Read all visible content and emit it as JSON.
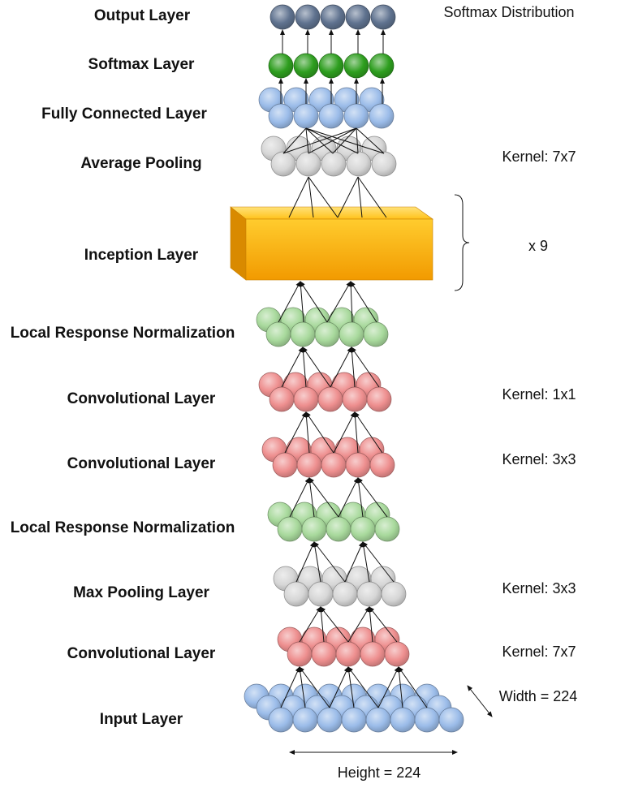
{
  "layers": [
    {
      "key": "output",
      "label": "Output Layer",
      "note": "Softmax Distribution",
      "color": "#5f728f"
    },
    {
      "key": "softmax",
      "label": "Softmax Layer",
      "note": "",
      "color": "#2e9e1f"
    },
    {
      "key": "fc",
      "label": "Fully Connected Layer",
      "note": "",
      "color": "#9bbce9"
    },
    {
      "key": "avgpool",
      "label": "Average Pooling",
      "note": "Kernel: 7x7",
      "color": "#d6d6d6"
    },
    {
      "key": "inception",
      "label": "Inception Layer",
      "note": "x 9",
      "color": "#f7a800"
    },
    {
      "key": "lrn2",
      "label": "Local Response Normalization",
      "note": "",
      "color": "#a8d99c"
    },
    {
      "key": "conv3",
      "label": "Convolutional Layer",
      "note": "Kernel: 1x1",
      "color": "#ee8f8f"
    },
    {
      "key": "conv2",
      "label": "Convolutional Layer",
      "note": "Kernel: 3x3",
      "color": "#ee8f8f"
    },
    {
      "key": "lrn1",
      "label": "Local Response Normalization",
      "note": "",
      "color": "#a8d99c"
    },
    {
      "key": "maxpool",
      "label": "Max Pooling Layer",
      "note": "Kernel: 3x3",
      "color": "#d6d6d6"
    },
    {
      "key": "conv1",
      "label": "Convolutional Layer",
      "note": "Kernel: 7x7",
      "color": "#ee8f8f"
    },
    {
      "key": "input",
      "label": "Input Layer",
      "note": "",
      "color": "#9bbce9"
    }
  ],
  "dimensions": {
    "width_label": "Width = 224",
    "height_label": "Height = 224"
  }
}
